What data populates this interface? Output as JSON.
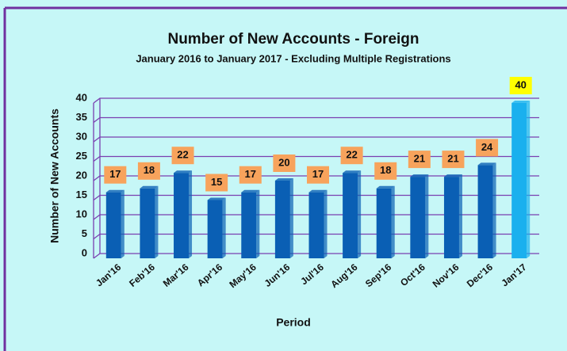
{
  "chart_data": {
    "type": "bar",
    "title": "Number of New Accounts - Foreign",
    "subtitle": "January 2016 to January 2017 - Excluding Multiple Registrations",
    "x_label": "Period",
    "y_label": "Number of New Accounts",
    "categories": [
      "Jan'16",
      "Feb'16",
      "Mar'16",
      "Apr'16",
      "May'16",
      "Jun'16",
      "Jul'16",
      "Aug'16",
      "Sep'16",
      "Oct'16",
      "Nov'16",
      "Dec'16",
      "Jan'17"
    ],
    "values": [
      17,
      18,
      22,
      15,
      17,
      20,
      17,
      22,
      18,
      21,
      21,
      24,
      40
    ],
    "colors": [
      "#0a5fb4",
      "#0a5fb4",
      "#0a5fb4",
      "#0a5fb4",
      "#0a5fb4",
      "#0a5fb4",
      "#0a5fb4",
      "#0a5fb4",
      "#0a5fb4",
      "#0a5fb4",
      "#0a5fb4",
      "#0a5fb4",
      "#1ab0ee"
    ],
    "label_colors": [
      "#f7a35c",
      "#f7a35c",
      "#f7a35c",
      "#f7a35c",
      "#f7a35c",
      "#f7a35c",
      "#f7a35c",
      "#f7a35c",
      "#f7a35c",
      "#f7a35c",
      "#f7a35c",
      "#f7a35c",
      "#ffff00"
    ],
    "ylim": [
      0,
      40
    ],
    "yticks": [
      0,
      5,
      10,
      15,
      20,
      25,
      30,
      35,
      40
    ],
    "grid": true,
    "grid_color": "#7a3fb0"
  }
}
